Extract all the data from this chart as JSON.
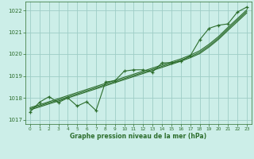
{
  "xlabel": "Graphe pression niveau de la mer (hPa)",
  "ylim": [
    1016.8,
    1022.4
  ],
  "xlim": [
    -0.5,
    23.5
  ],
  "yticks": [
    1017,
    1018,
    1019,
    1020,
    1021,
    1022
  ],
  "xticks": [
    0,
    1,
    2,
    3,
    4,
    5,
    6,
    7,
    8,
    9,
    10,
    11,
    12,
    13,
    14,
    15,
    16,
    17,
    18,
    19,
    20,
    21,
    22,
    23
  ],
  "background_color": "#cceee8",
  "grid_color": "#9ecdc6",
  "line_color": "#2d6e2d",
  "hours": [
    0,
    1,
    2,
    3,
    4,
    5,
    6,
    7,
    8,
    9,
    10,
    11,
    12,
    13,
    14,
    15,
    16,
    17,
    18,
    19,
    20,
    21,
    22,
    23
  ],
  "pressure_noisy": [
    1017.35,
    1017.8,
    1018.05,
    1017.78,
    1018.0,
    1017.62,
    1017.82,
    1017.42,
    1018.72,
    1018.78,
    1019.22,
    1019.28,
    1019.28,
    1019.18,
    1019.6,
    1019.6,
    1019.68,
    1019.92,
    1020.65,
    1021.18,
    1021.32,
    1021.38,
    1021.92,
    1022.15
  ],
  "trend1": [
    1017.55,
    1017.68,
    1017.82,
    1017.96,
    1018.1,
    1018.24,
    1018.38,
    1018.52,
    1018.66,
    1018.8,
    1018.94,
    1019.08,
    1019.22,
    1019.36,
    1019.5,
    1019.64,
    1019.78,
    1019.95,
    1020.15,
    1020.45,
    1020.8,
    1021.22,
    1021.62,
    1022.02
  ],
  "trend2": [
    1017.5,
    1017.63,
    1017.77,
    1017.9,
    1018.04,
    1018.18,
    1018.32,
    1018.46,
    1018.6,
    1018.74,
    1018.88,
    1019.02,
    1019.16,
    1019.3,
    1019.44,
    1019.58,
    1019.72,
    1019.88,
    1020.08,
    1020.38,
    1020.73,
    1021.15,
    1021.55,
    1021.95
  ],
  "trend3": [
    1017.45,
    1017.58,
    1017.72,
    1017.85,
    1017.99,
    1018.13,
    1018.27,
    1018.41,
    1018.55,
    1018.69,
    1018.83,
    1018.97,
    1019.11,
    1019.25,
    1019.39,
    1019.53,
    1019.67,
    1019.83,
    1020.02,
    1020.32,
    1020.67,
    1021.08,
    1021.48,
    1021.88
  ],
  "figsize": [
    3.2,
    2.0
  ],
  "dpi": 100
}
